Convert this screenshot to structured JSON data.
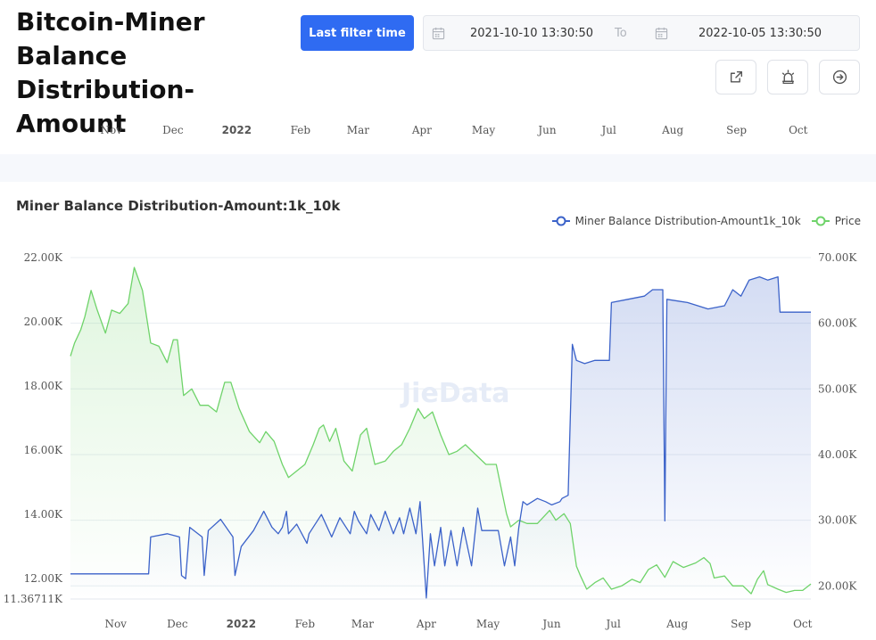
{
  "header": {
    "title": "Bitcoin-Miner Balance Distribution-Amount",
    "filter_button": "Last filter time",
    "date_from": "2021-10-10 13:30:50",
    "date_to_label": "To",
    "date_to": "2022-10-05 13:30:50",
    "icons": [
      "external-link-icon",
      "alarm-icon",
      "arrow-right-circle-icon"
    ]
  },
  "timeline": {
    "labels": [
      "Nov",
      "Dec",
      "2022",
      "Feb",
      "Mar",
      "Apr",
      "May",
      "Jun",
      "Jul",
      "Aug",
      "Sep",
      "Oct"
    ]
  },
  "watermark": "JieData",
  "colors": {
    "miner": "#3b62c9",
    "price": "#6fd36a",
    "accent": "#2f6bf2"
  },
  "chart_data": {
    "type": "line",
    "title": "Miner Balance Distribution-Amount:1k_10k",
    "legend": [
      "Miner Balance Distribution-Amount1k_10k",
      "Price"
    ],
    "legend_position": "top-right",
    "x_range": [
      "2021-10-10",
      "2022-10-05"
    ],
    "x_tick_labels": [
      "Nov",
      "Dec",
      "2022",
      "Feb",
      "Mar",
      "Apr",
      "May",
      "Jun",
      "Jul",
      "Aug",
      "Sep",
      "Oct"
    ],
    "y_left": {
      "min": 11367.11,
      "max": 22000,
      "tick_labels": [
        "22.00K",
        "20.00K",
        "18.00K",
        "16.00K",
        "14.00K",
        "12.00K",
        "11.36711K"
      ],
      "tick_values": [
        22000,
        20000,
        18000,
        16000,
        14000,
        12000,
        11367.11
      ]
    },
    "y_right": {
      "min": 18000,
      "max": 70000,
      "tick_labels": [
        "70.00K",
        "60.00K",
        "50.00K",
        "40.00K",
        "30.00K",
        "20.00K"
      ],
      "tick_values": [
        70000,
        60000,
        50000,
        40000,
        30000,
        20000
      ]
    },
    "grid": true,
    "series": [
      {
        "name": "Miner Balance Distribution-Amount1k_10k",
        "axis": "left",
        "points": [
          [
            "2021-10-10",
            12150
          ],
          [
            "2021-11-05",
            12150
          ],
          [
            "2021-11-17",
            12150
          ],
          [
            "2021-11-18",
            13300
          ],
          [
            "2021-11-26",
            13400
          ],
          [
            "2021-12-02",
            13300
          ],
          [
            "2021-12-03",
            12100
          ],
          [
            "2021-12-05",
            12000
          ],
          [
            "2021-12-07",
            13600
          ],
          [
            "2021-12-13",
            13300
          ],
          [
            "2021-12-14",
            12100
          ],
          [
            "2021-12-16",
            13500
          ],
          [
            "2021-12-22",
            13850
          ],
          [
            "2021-12-28",
            13300
          ],
          [
            "2021-12-29",
            12100
          ],
          [
            "2022-01-01",
            13000
          ],
          [
            "2022-01-07",
            13500
          ],
          [
            "2022-01-12",
            14100
          ],
          [
            "2022-01-16",
            13600
          ],
          [
            "2022-01-19",
            13400
          ],
          [
            "2022-01-21",
            13600
          ],
          [
            "2022-01-23",
            14100
          ],
          [
            "2022-01-24",
            13400
          ],
          [
            "2022-01-28",
            13700
          ],
          [
            "2022-02-02",
            13100
          ],
          [
            "2022-02-03",
            13400
          ],
          [
            "2022-02-09",
            14000
          ],
          [
            "2022-02-14",
            13300
          ],
          [
            "2022-02-18",
            13900
          ],
          [
            "2022-02-23",
            13400
          ],
          [
            "2022-02-25",
            14100
          ],
          [
            "2022-02-27",
            13800
          ],
          [
            "2022-03-03",
            13400
          ],
          [
            "2022-03-05",
            14000
          ],
          [
            "2022-03-09",
            13500
          ],
          [
            "2022-03-12",
            14100
          ],
          [
            "2022-03-16",
            13400
          ],
          [
            "2022-03-19",
            13900
          ],
          [
            "2022-03-21",
            13400
          ],
          [
            "2022-03-24",
            14200
          ],
          [
            "2022-03-27",
            13400
          ],
          [
            "2022-03-29",
            14400
          ],
          [
            "2022-03-31",
            12400
          ],
          [
            "2022-04-01",
            11400
          ],
          [
            "2022-04-03",
            13400
          ],
          [
            "2022-04-05",
            12400
          ],
          [
            "2022-04-08",
            13600
          ],
          [
            "2022-04-10",
            12400
          ],
          [
            "2022-04-13",
            13500
          ],
          [
            "2022-04-16",
            12400
          ],
          [
            "2022-04-19",
            13600
          ],
          [
            "2022-04-23",
            12400
          ],
          [
            "2022-04-26",
            14200
          ],
          [
            "2022-04-28",
            13500
          ],
          [
            "2022-05-06",
            13500
          ],
          [
            "2022-05-09",
            12400
          ],
          [
            "2022-05-12",
            13300
          ],
          [
            "2022-05-14",
            12400
          ],
          [
            "2022-05-16",
            13600
          ],
          [
            "2022-05-18",
            14400
          ],
          [
            "2022-05-20",
            14300
          ],
          [
            "2022-05-25",
            14500
          ],
          [
            "2022-05-29",
            14400
          ],
          [
            "2022-06-01",
            14300
          ],
          [
            "2022-06-05",
            14400
          ],
          [
            "2022-06-06",
            14500
          ],
          [
            "2022-06-09",
            14600
          ],
          [
            "2022-06-11",
            19300
          ],
          [
            "2022-06-13",
            18800
          ],
          [
            "2022-06-17",
            18700
          ],
          [
            "2022-06-22",
            18800
          ],
          [
            "2022-06-29",
            18800
          ],
          [
            "2022-06-30",
            20600
          ],
          [
            "2022-07-08",
            20700
          ],
          [
            "2022-07-16",
            20800
          ],
          [
            "2022-07-20",
            21000
          ],
          [
            "2022-07-25",
            21000
          ],
          [
            "2022-07-26",
            13800
          ],
          [
            "2022-07-27",
            20700
          ],
          [
            "2022-08-06",
            20600
          ],
          [
            "2022-08-16",
            20400
          ],
          [
            "2022-08-24",
            20500
          ],
          [
            "2022-08-28",
            21000
          ],
          [
            "2022-09-01",
            20800
          ],
          [
            "2022-09-05",
            21300
          ],
          [
            "2022-09-10",
            21400
          ],
          [
            "2022-09-14",
            21300
          ],
          [
            "2022-09-19",
            21400
          ],
          [
            "2022-09-20",
            20300
          ],
          [
            "2022-09-30",
            20300
          ],
          [
            "2022-10-05",
            20300
          ]
        ]
      },
      {
        "name": "Price",
        "axis": "right",
        "points": [
          [
            "2021-10-10",
            55000
          ],
          [
            "2021-10-12",
            57000
          ],
          [
            "2021-10-15",
            59000
          ],
          [
            "2021-10-17",
            61000
          ],
          [
            "2021-10-20",
            65000
          ],
          [
            "2021-10-23",
            62000
          ],
          [
            "2021-10-27",
            58500
          ],
          [
            "2021-10-30",
            62000
          ],
          [
            "2021-11-03",
            61500
          ],
          [
            "2021-11-07",
            63000
          ],
          [
            "2021-11-10",
            68500
          ],
          [
            "2021-11-14",
            65000
          ],
          [
            "2021-11-18",
            57000
          ],
          [
            "2021-11-22",
            56500
          ],
          [
            "2021-11-26",
            54000
          ],
          [
            "2021-11-29",
            57500
          ],
          [
            "2021-12-01",
            57500
          ],
          [
            "2021-12-04",
            49000
          ],
          [
            "2021-12-08",
            50000
          ],
          [
            "2021-12-12",
            47500
          ],
          [
            "2021-12-16",
            47500
          ],
          [
            "2021-12-20",
            46500
          ],
          [
            "2021-12-24",
            51000
          ],
          [
            "2021-12-27",
            51000
          ],
          [
            "2021-12-31",
            47000
          ],
          [
            "2022-01-05",
            43500
          ],
          [
            "2022-01-10",
            41800
          ],
          [
            "2022-01-13",
            43500
          ],
          [
            "2022-01-17",
            42000
          ],
          [
            "2022-01-21",
            38500
          ],
          [
            "2022-01-24",
            36500
          ],
          [
            "2022-01-28",
            37500
          ],
          [
            "2022-02-01",
            38500
          ],
          [
            "2022-02-05",
            41500
          ],
          [
            "2022-02-08",
            44000
          ],
          [
            "2022-02-10",
            44500
          ],
          [
            "2022-02-13",
            42000
          ],
          [
            "2022-02-16",
            44000
          ],
          [
            "2022-02-20",
            39000
          ],
          [
            "2022-02-24",
            37500
          ],
          [
            "2022-02-28",
            43000
          ],
          [
            "2022-03-03",
            44000
          ],
          [
            "2022-03-07",
            38500
          ],
          [
            "2022-03-12",
            39000
          ],
          [
            "2022-03-16",
            40500
          ],
          [
            "2022-03-20",
            41500
          ],
          [
            "2022-03-24",
            44000
          ],
          [
            "2022-03-28",
            47000
          ],
          [
            "2022-03-31",
            45500
          ],
          [
            "2022-04-04",
            46500
          ],
          [
            "2022-04-08",
            43000
          ],
          [
            "2022-04-12",
            40000
          ],
          [
            "2022-04-16",
            40500
          ],
          [
            "2022-04-20",
            41500
          ],
          [
            "2022-04-25",
            40000
          ],
          [
            "2022-04-30",
            38500
          ],
          [
            "2022-05-05",
            38500
          ],
          [
            "2022-05-08",
            34000
          ],
          [
            "2022-05-10",
            31000
          ],
          [
            "2022-05-12",
            29000
          ],
          [
            "2022-05-16",
            30000
          ],
          [
            "2022-05-20",
            29500
          ],
          [
            "2022-05-25",
            29500
          ],
          [
            "2022-05-31",
            31500
          ],
          [
            "2022-06-03",
            30000
          ],
          [
            "2022-06-07",
            31000
          ],
          [
            "2022-06-10",
            29500
          ],
          [
            "2022-06-13",
            23000
          ],
          [
            "2022-06-15",
            21500
          ],
          [
            "2022-06-18",
            19500
          ],
          [
            "2022-06-22",
            20500
          ],
          [
            "2022-06-26",
            21200
          ],
          [
            "2022-06-30",
            19500
          ],
          [
            "2022-07-05",
            20000
          ],
          [
            "2022-07-10",
            21000
          ],
          [
            "2022-07-14",
            20500
          ],
          [
            "2022-07-18",
            22500
          ],
          [
            "2022-07-22",
            23200
          ],
          [
            "2022-07-26",
            21300
          ],
          [
            "2022-07-30",
            23700
          ],
          [
            "2022-08-04",
            22800
          ],
          [
            "2022-08-10",
            23500
          ],
          [
            "2022-08-14",
            24300
          ],
          [
            "2022-08-17",
            23400
          ],
          [
            "2022-08-19",
            21200
          ],
          [
            "2022-08-24",
            21500
          ],
          [
            "2022-08-28",
            20000
          ],
          [
            "2022-09-02",
            20000
          ],
          [
            "2022-09-06",
            18800
          ],
          [
            "2022-09-09",
            21000
          ],
          [
            "2022-09-12",
            22300
          ],
          [
            "2022-09-14",
            20200
          ],
          [
            "2022-09-19",
            19500
          ],
          [
            "2022-09-23",
            19000
          ],
          [
            "2022-09-27",
            19300
          ],
          [
            "2022-10-01",
            19300
          ],
          [
            "2022-10-05",
            20300
          ]
        ]
      }
    ]
  }
}
